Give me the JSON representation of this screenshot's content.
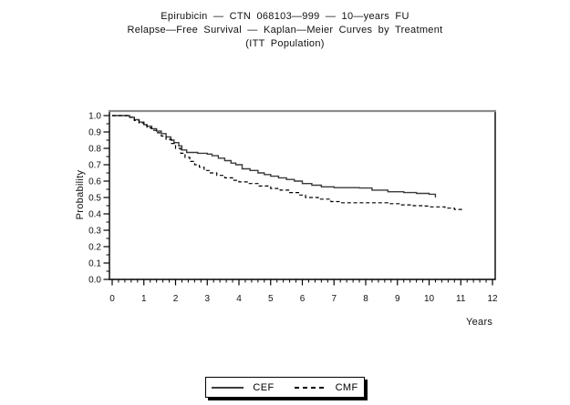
{
  "title": {
    "line1": "Epirubicin — CTN 068103—999 — 10—years FU",
    "line2": "Relapse—Free Survival — Kaplan—Meier Curves by Treatment",
    "line3": "(ITT Population)"
  },
  "colors": {
    "background": "#ffffff",
    "axis": "#000000",
    "frame_top": "#8c8c8c",
    "cef_line": "#3a3a3a",
    "cmf_line": "#000000",
    "text": "#111111"
  },
  "legend": {
    "items": [
      {
        "label": "CEF",
        "line_style": "solid"
      },
      {
        "label": "CMF",
        "line_style": "dashed"
      }
    ]
  },
  "chart_data": {
    "type": "line",
    "subtype": "kaplan-meier-step",
    "title": "Epirubicin — CTN 068103—999 — 10—years FU / Relapse—Free Survival — Kaplan—Meier Curves by Treatment / (ITT Population)",
    "xlabel": "Years",
    "ylabel": "Probability",
    "xlim": [
      0,
      12
    ],
    "ylim": [
      0.0,
      1.0
    ],
    "x_ticks": [
      0,
      1,
      2,
      3,
      4,
      5,
      6,
      7,
      8,
      9,
      10,
      11,
      12
    ],
    "x_minor_step": 0.2,
    "y_ticks": [
      "1.0",
      "0.9",
      "0.8",
      "0.7",
      "0.6",
      "0.5",
      "0.4",
      "0.3",
      "0.2",
      "0.1",
      "0.0"
    ],
    "y_minor_step": 0.05,
    "grid": false,
    "legend_position": "bottom-center-boxed",
    "series": [
      {
        "name": "CEF",
        "line": "solid",
        "points": [
          [
            0,
            1.0
          ],
          [
            0.45,
            1.0
          ],
          [
            0.55,
            0.99
          ],
          [
            0.7,
            0.975
          ],
          [
            0.85,
            0.96
          ],
          [
            1.0,
            0.945
          ],
          [
            1.1,
            0.935
          ],
          [
            1.25,
            0.92
          ],
          [
            1.4,
            0.905
          ],
          [
            1.55,
            0.89
          ],
          [
            1.7,
            0.87
          ],
          [
            1.85,
            0.85
          ],
          [
            1.95,
            0.835
          ],
          [
            2.1,
            0.815
          ],
          [
            2.2,
            0.79
          ],
          [
            2.35,
            0.775
          ],
          [
            2.7,
            0.77
          ],
          [
            3.0,
            0.765
          ],
          [
            3.15,
            0.755
          ],
          [
            3.35,
            0.74
          ],
          [
            3.55,
            0.725
          ],
          [
            3.75,
            0.71
          ],
          [
            3.9,
            0.7
          ],
          [
            4.1,
            0.675
          ],
          [
            4.35,
            0.665
          ],
          [
            4.6,
            0.65
          ],
          [
            4.8,
            0.64
          ],
          [
            5.0,
            0.63
          ],
          [
            5.25,
            0.62
          ],
          [
            5.5,
            0.61
          ],
          [
            5.75,
            0.6
          ],
          [
            6.0,
            0.585
          ],
          [
            6.3,
            0.575
          ],
          [
            6.6,
            0.565
          ],
          [
            7.0,
            0.56
          ],
          [
            7.8,
            0.558
          ],
          [
            8.2,
            0.545
          ],
          [
            8.7,
            0.535
          ],
          [
            9.2,
            0.53
          ],
          [
            9.6,
            0.525
          ],
          [
            10.0,
            0.52
          ],
          [
            10.2,
            0.5
          ]
        ]
      },
      {
        "name": "CMF",
        "line": "dashed",
        "points": [
          [
            0,
            1.0
          ],
          [
            0.45,
            1.0
          ],
          [
            0.55,
            0.99
          ],
          [
            0.7,
            0.97
          ],
          [
            0.85,
            0.955
          ],
          [
            1.0,
            0.94
          ],
          [
            1.1,
            0.925
          ],
          [
            1.25,
            0.91
          ],
          [
            1.4,
            0.895
          ],
          [
            1.55,
            0.875
          ],
          [
            1.7,
            0.855
          ],
          [
            1.87,
            0.83
          ],
          [
            2.0,
            0.8
          ],
          [
            2.16,
            0.77
          ],
          [
            2.3,
            0.745
          ],
          [
            2.45,
            0.72
          ],
          [
            2.6,
            0.7
          ],
          [
            2.75,
            0.685
          ],
          [
            2.9,
            0.665
          ],
          [
            3.1,
            0.65
          ],
          [
            3.3,
            0.635
          ],
          [
            3.55,
            0.62
          ],
          [
            3.8,
            0.605
          ],
          [
            4.0,
            0.595
          ],
          [
            4.3,
            0.585
          ],
          [
            4.6,
            0.57
          ],
          [
            5.0,
            0.555
          ],
          [
            5.3,
            0.545
          ],
          [
            5.6,
            0.53
          ],
          [
            5.9,
            0.515
          ],
          [
            6.1,
            0.5
          ],
          [
            6.5,
            0.49
          ],
          [
            6.9,
            0.475
          ],
          [
            7.2,
            0.468
          ],
          [
            8.7,
            0.462
          ],
          [
            9.1,
            0.455
          ],
          [
            9.5,
            0.45
          ],
          [
            9.8,
            0.448
          ],
          [
            10.05,
            0.443
          ],
          [
            10.5,
            0.435
          ],
          [
            10.8,
            0.427
          ],
          [
            11.05,
            0.418
          ]
        ]
      }
    ]
  }
}
